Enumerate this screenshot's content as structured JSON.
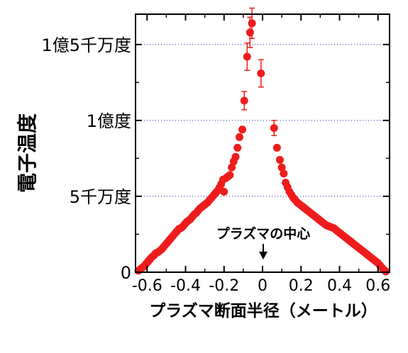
{
  "chart_data": {
    "type": "scatter",
    "xlabel": "プラズマ断面半径（メートル）",
    "ylabel": "電子温度",
    "xlim": [
      -0.66,
      0.66
    ],
    "ylim": [
      0,
      170000000
    ],
    "x_ticks": [
      -0.6,
      -0.4,
      -0.2,
      0,
      0.2,
      0.4,
      0.6
    ],
    "x_tick_labels": [
      "-0.6",
      "-0.4",
      "-0.2",
      "0",
      "0.2",
      "0.4",
      "0.6"
    ],
    "y_ticks": [
      0,
      50000000,
      100000000,
      150000000
    ],
    "y_tick_labels": [
      "0",
      "5千万度",
      "1億度",
      "1億5千万度"
    ],
    "grid": "horizontal dotted at y ticks",
    "annotation": {
      "text": "プラズマの中心",
      "x": 0,
      "y": 11000000
    },
    "marker_color": "#ee1c1c",
    "series": [
      {
        "x": [
          -0.645,
          -0.635,
          -0.625,
          -0.615,
          -0.605,
          -0.595,
          -0.585,
          -0.575,
          -0.565,
          -0.555,
          -0.545,
          -0.535,
          -0.525,
          -0.515,
          -0.505,
          -0.495,
          -0.485,
          -0.475,
          -0.465,
          -0.455,
          -0.445,
          -0.435,
          -0.425,
          -0.415,
          -0.405,
          -0.395,
          -0.385,
          -0.375,
          -0.365,
          -0.355,
          -0.345,
          -0.335,
          -0.325,
          -0.315,
          -0.305,
          -0.295,
          -0.285,
          -0.275,
          -0.265,
          -0.255,
          -0.245,
          -0.235,
          -0.225,
          -0.215,
          -0.205,
          -0.2,
          -0.19,
          -0.18,
          -0.17,
          -0.16,
          -0.15,
          -0.14,
          -0.13,
          -0.12,
          -0.105,
          -0.095,
          -0.08,
          -0.065,
          -0.055,
          -0.008,
          0.06,
          0.075,
          0.09,
          0.1,
          0.11,
          0.12,
          0.13,
          0.14,
          0.15,
          0.16,
          0.17,
          0.18,
          0.19,
          0.2,
          0.21,
          0.22,
          0.23,
          0.24,
          0.25,
          0.26,
          0.27,
          0.28,
          0.29,
          0.3,
          0.31,
          0.32,
          0.33,
          0.34,
          0.35,
          0.36,
          0.37,
          0.38,
          0.39,
          0.4,
          0.41,
          0.42,
          0.43,
          0.44,
          0.45,
          0.46,
          0.47,
          0.48,
          0.49,
          0.5,
          0.51,
          0.52,
          0.53,
          0.54,
          0.55,
          0.56,
          0.57,
          0.58,
          0.59,
          0.6,
          0.61,
          0.62,
          0.63,
          0.64
        ],
        "values": [
          1000000,
          2000000,
          3000000,
          4000000,
          5500000,
          7000000,
          8500000,
          10000000,
          11000000,
          12500000,
          13000000,
          14000000,
          15000000,
          16500000,
          18000000,
          19500000,
          21000000,
          22500000,
          24000000,
          25500000,
          27000000,
          28500000,
          29000000,
          30000000,
          31500000,
          33000000,
          34000000,
          35000000,
          36500000,
          38000000,
          39000000,
          40500000,
          42000000,
          43000000,
          44000000,
          45000000,
          46000000,
          47500000,
          49000000,
          50500000,
          52000000,
          53500000,
          55500000,
          58000000,
          61000000,
          53000000,
          62000000,
          63000000,
          64000000,
          69000000,
          73000000,
          76000000,
          82000000,
          89000000,
          94000000,
          113000000,
          142000000,
          158000000,
          164000000,
          131000000,
          95000000,
          82000000,
          74000000,
          69000000,
          65000000,
          59000000,
          56000000,
          53000000,
          51000000,
          49000000,
          47500000,
          46000000,
          45000000,
          44000000,
          43000000,
          42000000,
          41000000,
          40000000,
          39000000,
          38000000,
          37000000,
          36000000,
          35000000,
          34000000,
          33000000,
          32000000,
          31000000,
          30500000,
          30000000,
          29500000,
          29000000,
          28000000,
          27000000,
          26000000,
          25000000,
          24000000,
          23000000,
          22000000,
          21000000,
          20000000,
          19000000,
          18000000,
          17000000,
          16000000,
          15000000,
          14000000,
          13000000,
          12000000,
          11000000,
          10000000,
          9000000,
          8000000,
          7000000,
          6000000,
          4500000,
          3000000,
          1500000,
          500000
        ],
        "error": [
          0,
          0,
          0,
          0,
          0,
          0,
          0,
          0,
          0,
          0,
          0,
          0,
          0,
          0,
          0,
          0,
          0,
          0,
          0,
          0,
          0,
          0,
          0,
          0,
          0,
          0,
          0,
          0,
          0,
          0,
          0,
          0,
          0,
          0,
          0,
          0,
          0,
          0,
          0,
          0,
          0,
          0,
          0,
          0,
          0,
          0,
          0,
          0,
          0,
          0,
          0,
          0,
          0,
          0,
          0,
          6000000,
          9000000,
          10000000,
          10000000,
          9000000,
          5000000,
          0,
          0,
          0,
          0,
          0,
          0,
          0,
          0,
          0,
          0,
          0,
          0,
          0,
          0,
          0,
          0,
          0,
          0,
          0,
          0,
          0,
          0,
          0,
          0,
          0,
          0,
          0,
          0,
          0,
          0,
          0,
          0,
          0,
          0,
          0,
          0,
          0,
          0,
          0,
          0,
          0,
          0,
          0,
          0,
          0,
          0,
          0,
          0,
          0,
          0,
          0,
          0,
          0,
          0,
          0,
          0,
          0
        ]
      }
    ]
  }
}
